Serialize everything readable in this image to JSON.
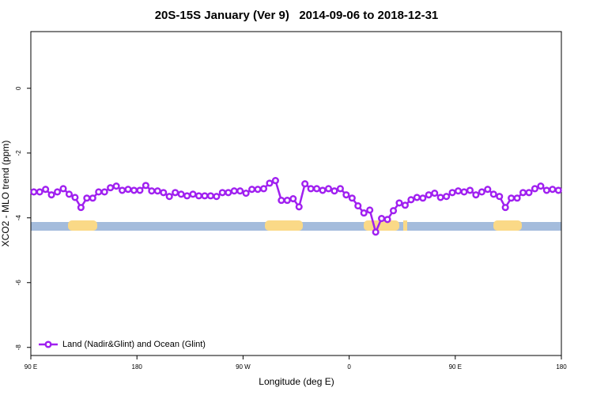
{
  "chart_data": {
    "type": "line",
    "title": "20S-15S January (Ver 9)   2014-09-06 to 2018-12-31",
    "x_label": "Longitude (deg E)",
    "y_label": "XCO2 - MLO trend (ppm)",
    "x": [
      92.5,
      97.5,
      102.5,
      107.5,
      112.5,
      117.5,
      122.5,
      127.5,
      132.5,
      137.5,
      142.5,
      147.5,
      152.5,
      157.5,
      162.5,
      167.5,
      172.5,
      177.5,
      182.5,
      187.5,
      192.5,
      197.5,
      202.5,
      207.5,
      212.5,
      217.5,
      222.5,
      227.5,
      232.5,
      237.5,
      242.5,
      247.5,
      252.5,
      257.5,
      262.5,
      267.5,
      272.5,
      277.5,
      282.5,
      287.5,
      292.5,
      297.5,
      302.5,
      307.5,
      312.5,
      317.5,
      322.5,
      327.5,
      332.5,
      337.5,
      342.5,
      347.5,
      352.5,
      357.5,
      362.5,
      367.5,
      372.5,
      377.5,
      382.5,
      387.5,
      392.5,
      397.5,
      402.5,
      407.5,
      412.5,
      417.5,
      422.5,
      427.5,
      432.5,
      437.5,
      442.5,
      447.5,
      452.5,
      457.5,
      462.5,
      467.5,
      472.5,
      477.5,
      482.5,
      487.5,
      492.5,
      497.5,
      502.5,
      507.5,
      512.5,
      517.5,
      522.5,
      527.5,
      532.5,
      537.5
    ],
    "series": [
      {
        "name": "Land (Nadir&Glint) and Ocean (Glint)",
        "color": "#a020f0",
        "values": [
          -3.2,
          -3.2,
          -3.12,
          -3.29,
          -3.2,
          -3.1,
          -3.27,
          -3.37,
          -3.68,
          -3.39,
          -3.39,
          -3.2,
          -3.2,
          -3.07,
          -3.02,
          -3.15,
          -3.12,
          -3.15,
          -3.15,
          -3.0,
          -3.17,
          -3.17,
          -3.22,
          -3.34,
          -3.22,
          -3.27,
          -3.32,
          -3.27,
          -3.32,
          -3.32,
          -3.32,
          -3.34,
          -3.22,
          -3.22,
          -3.17,
          -3.17,
          -3.24,
          -3.12,
          -3.12,
          -3.1,
          -2.93,
          -2.85,
          -3.46,
          -3.46,
          -3.41,
          -3.66,
          -2.95,
          -3.1,
          -3.1,
          -3.15,
          -3.1,
          -3.17,
          -3.1,
          -3.29,
          -3.39,
          -3.63,
          -3.85,
          -3.76,
          -4.44,
          -4.02,
          -4.05,
          -3.78,
          -3.54,
          -3.61,
          -3.44,
          -3.37,
          -3.39,
          -3.29,
          -3.24,
          -3.37,
          -3.34,
          -3.22,
          -3.17,
          -3.2,
          -3.15,
          -3.29,
          -3.2,
          -3.12,
          -3.27,
          -3.34,
          -3.68,
          -3.39,
          -3.39,
          -3.22,
          -3.22,
          -3.1,
          -3.02,
          -3.15,
          -3.12,
          -3.15
        ]
      }
    ],
    "xlim": [
      90,
      540
    ],
    "xticks": [
      {
        "value": 90,
        "label": "90 E"
      },
      180,
      {
        "value": 270,
        "label": "90 W"
      },
      {
        "value": 360,
        "label": "0"
      },
      {
        "value": 450,
        "label": "90 E"
      },
      {
        "value": 540,
        "label": "180"
      }
    ],
    "ylim": [
      -8.25,
      1.75
    ],
    "yticks": [
      -8,
      -6,
      -4,
      -2,
      0
    ],
    "legend": "bottom-left"
  }
}
